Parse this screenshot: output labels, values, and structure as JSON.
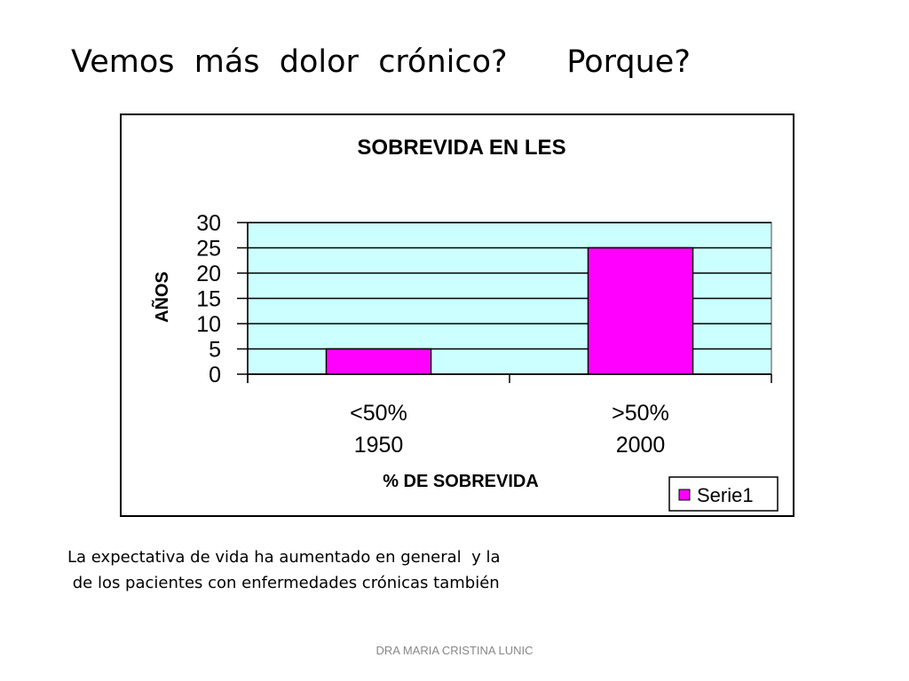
{
  "slide": {
    "title": "Vemos  más  dolor  crónico?      Porque?",
    "caption_line1": "La expectativa de vida ha aumentado en general  y la",
    "caption_line2": " de los pacientes con enfermedades crónicas también",
    "footer": "DRA MARIA CRISTINA LUNIC"
  },
  "chart_data": {
    "type": "bar",
    "title": "SOBREVIDA EN LES",
    "categories": [
      [
        "<50%",
        "1950"
      ],
      [
        ">50%",
        "2000"
      ]
    ],
    "series": [
      {
        "name": "Serie1",
        "values": [
          5,
          25
        ],
        "color": "#ff00ff"
      }
    ],
    "xlabel": "% DE SOBREVIDA",
    "ylabel": "AÑOS",
    "ylim": [
      0,
      30
    ],
    "yticks": [
      0,
      5,
      10,
      15,
      20,
      25,
      30
    ],
    "plot_background": "#ccffff",
    "grid": true,
    "legend": {
      "position": "bottom-right",
      "entries": [
        "Serie1"
      ]
    }
  }
}
